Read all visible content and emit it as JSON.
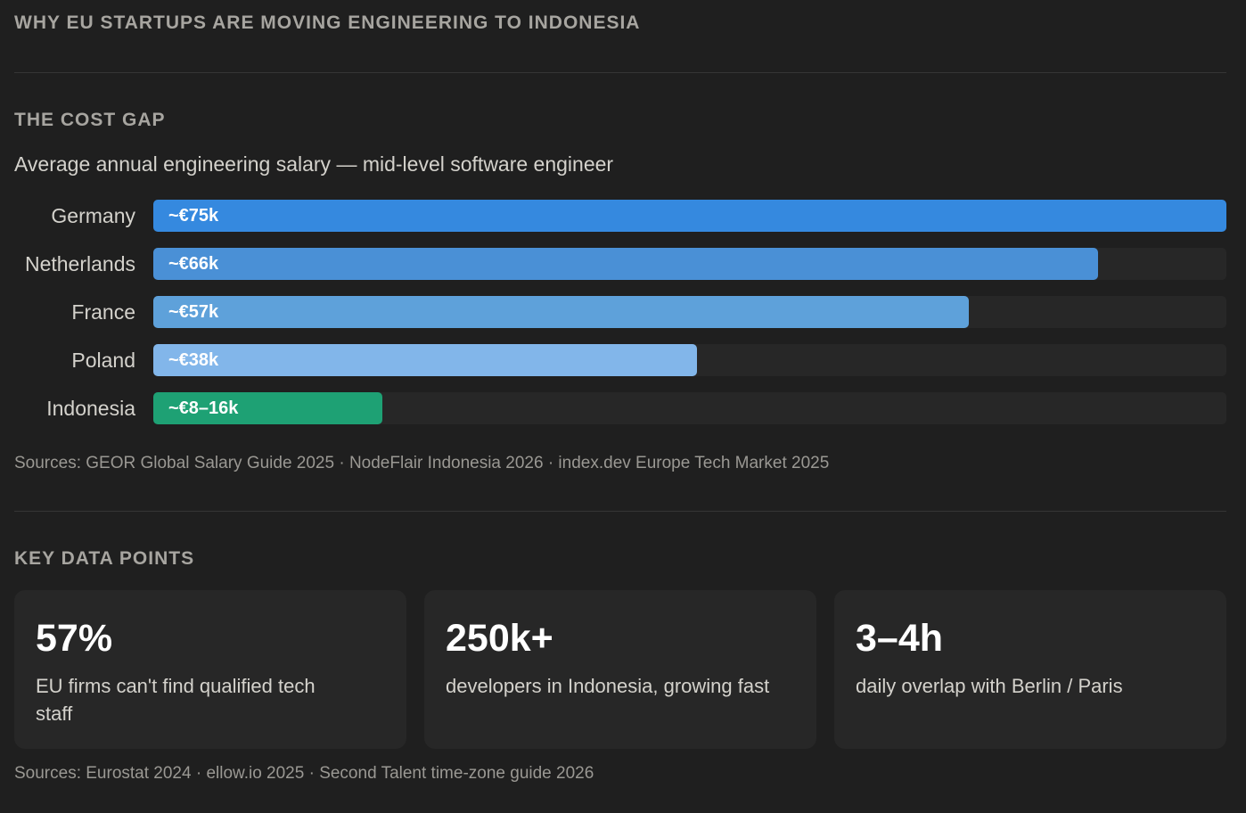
{
  "header": {
    "title": "WHY EU STARTUPS ARE MOVING ENGINEERING TO INDONESIA"
  },
  "cost_gap": {
    "section_title": "THE COST GAP",
    "subtitle": "Average annual engineering salary — mid-level software engineer",
    "sources": "Sources: GEOR Global Salary Guide 2025 · NodeFlair Indonesia 2026 · index.dev Europe Tech Market 2025"
  },
  "chart_data": {
    "type": "bar",
    "orientation": "horizontal",
    "title": "Average annual engineering salary — mid-level software engineer",
    "categories": [
      "Germany",
      "Netherlands",
      "France",
      "Poland",
      "Indonesia"
    ],
    "values": [
      75,
      66,
      57,
      38,
      16
    ],
    "value_labels": [
      "~€75k",
      "~€66k",
      "~€57k",
      "~€38k",
      "~€8–16k"
    ],
    "unit": "€k",
    "xlim": [
      0,
      75
    ],
    "colors": [
      "#3589df",
      "#4a90d6",
      "#5ea1da",
      "#82b6ea",
      "#1ea174"
    ],
    "grid": false,
    "legend": "none"
  },
  "key_data": {
    "section_title": "KEY DATA POINTS",
    "cards": [
      {
        "value": "57%",
        "description": "EU firms can't find qualified tech staff"
      },
      {
        "value": "250k+",
        "description": "developers in Indonesia, growing fast"
      },
      {
        "value": "3–4h",
        "description": "daily overlap with Berlin / Paris"
      }
    ],
    "sources": "Sources: Eurostat 2024 · ellow.io 2025 · Second Talent time-zone guide 2026"
  }
}
